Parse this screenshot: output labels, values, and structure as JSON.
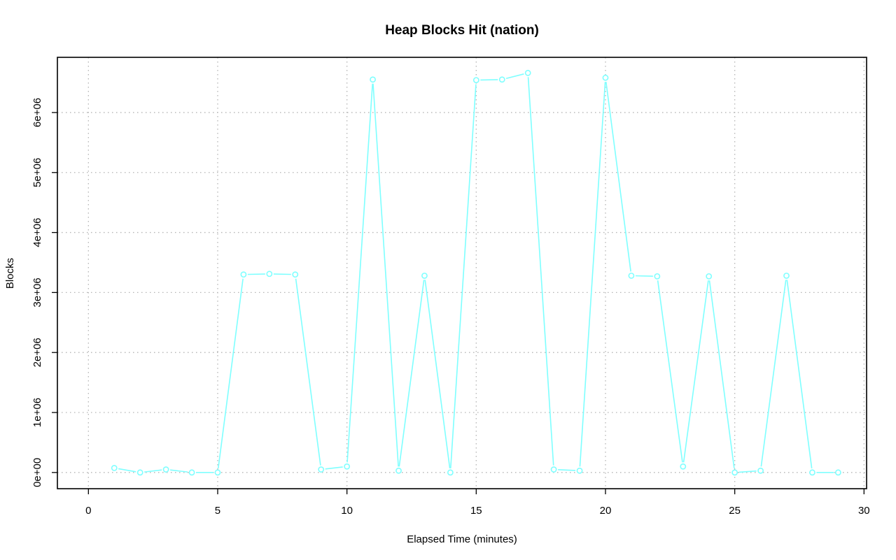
{
  "chart_data": {
    "type": "line",
    "title": "Heap Blocks Hit (nation)",
    "xlabel": "Elapsed Time (minutes)",
    "ylabel": "Blocks",
    "xlim": [
      -1.2,
      30.1
    ],
    "ylim": [
      -270000,
      6920000
    ],
    "x_ticks": [
      0,
      5,
      10,
      15,
      20,
      25,
      30
    ],
    "x_tick_labels": [
      "0",
      "5",
      "10",
      "15",
      "20",
      "25",
      "30"
    ],
    "y_ticks": [
      0,
      1000000,
      2000000,
      3000000,
      4000000,
      5000000,
      6000000
    ],
    "y_tick_labels": [
      "0e+00",
      "1e+06",
      "2e+06",
      "3e+06",
      "4e+06",
      "5e+06",
      "6e+06"
    ],
    "grid": true,
    "series": [
      {
        "color": "#7fffff",
        "x": [
          1,
          2,
          3,
          4,
          5,
          6,
          7,
          8,
          9,
          10,
          11,
          12,
          13,
          14,
          15,
          16,
          17,
          18,
          19,
          20,
          21,
          22,
          23,
          24,
          25,
          26,
          27,
          28,
          29
        ],
        "values": [
          75000,
          0,
          50000,
          0,
          0,
          3300000,
          3310000,
          3300000,
          50000,
          100000,
          6550000,
          30000,
          3280000,
          0,
          6540000,
          6550000,
          6660000,
          50000,
          30000,
          6580000,
          3280000,
          3270000,
          100000,
          3270000,
          0,
          30000,
          3280000,
          0,
          0
        ]
      }
    ]
  }
}
